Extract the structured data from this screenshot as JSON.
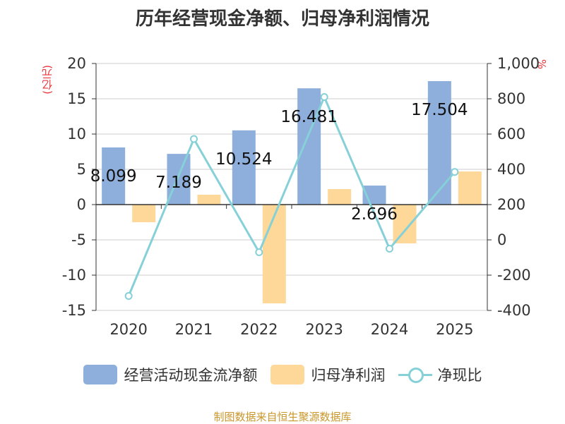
{
  "title": "历年经营现金净额、归母净利润情况",
  "source": "制图数据来自恒生聚源数据库",
  "chart_data": {
    "type": "bar",
    "categories": [
      "2020",
      "2021",
      "2022",
      "2023",
      "2024",
      "2025"
    ],
    "series": [
      {
        "name": "经营活动现金流净额",
        "type": "bar",
        "axis": "left",
        "color": "#8eaedb",
        "values": [
          8.099,
          7.189,
          10.524,
          16.481,
          2.696,
          17.504
        ],
        "labels": [
          "8.099",
          "7.189",
          "10.524",
          "16.481",
          "2.696",
          "17.504"
        ]
      },
      {
        "name": "归母净利润",
        "type": "bar",
        "axis": "left",
        "color": "#fdd898",
        "values": [
          -2.5,
          1.4,
          -14.0,
          2.2,
          -5.5,
          4.7
        ]
      },
      {
        "name": "净现比",
        "type": "line",
        "axis": "right",
        "color": "#86d0d8",
        "values": [
          -318,
          572,
          -70,
          810,
          -50,
          385
        ]
      }
    ],
    "y_left": {
      "unit": "(亿元)",
      "ylim": [
        -15,
        20
      ],
      "ticks": [
        -15,
        -10,
        -5,
        0,
        5,
        10,
        15,
        20
      ],
      "tick_labels": [
        "-15",
        "-10",
        "-5",
        "0",
        "5",
        "10",
        "15",
        "20"
      ]
    },
    "y_right": {
      "unit": "%",
      "ylim": [
        -400,
        1000
      ],
      "ticks": [
        -400,
        -200,
        0,
        200,
        400,
        600,
        800,
        1000
      ],
      "tick_labels": [
        "-400",
        "-200",
        "0",
        "200",
        "400",
        "600",
        "800",
        "1,000"
      ]
    },
    "grid": true,
    "legend": "bottom"
  }
}
